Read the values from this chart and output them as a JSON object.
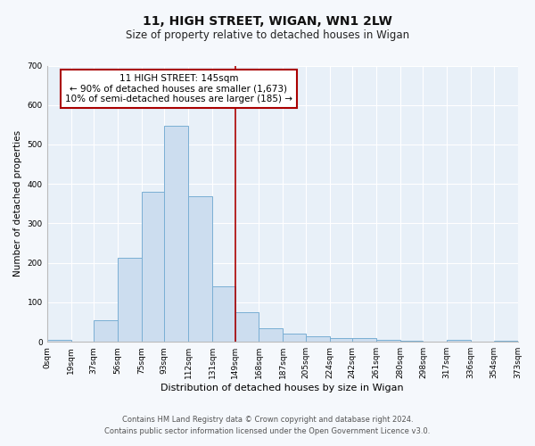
{
  "title": "11, HIGH STREET, WIGAN, WN1 2LW",
  "subtitle": "Size of property relative to detached houses in Wigan",
  "xlabel": "Distribution of detached houses by size in Wigan",
  "ylabel": "Number of detached properties",
  "bar_color": "#ccddef",
  "bar_edge_color": "#7aafd4",
  "background_color": "#e8f0f8",
  "fig_background_color": "#f5f8fc",
  "grid_color": "#ffffff",
  "vline_x": 149,
  "vline_color": "#aa0000",
  "bin_edges": [
    0,
    19,
    37,
    56,
    75,
    93,
    112,
    131,
    149,
    168,
    187,
    205,
    224,
    242,
    261,
    280,
    298,
    317,
    336,
    354,
    373
  ],
  "bin_counts": [
    5,
    0,
    55,
    213,
    381,
    547,
    370,
    141,
    76,
    34,
    20,
    15,
    10,
    9,
    6,
    2,
    0,
    4,
    1,
    2
  ],
  "tick_labels": [
    "0sqm",
    "19sqm",
    "37sqm",
    "56sqm",
    "75sqm",
    "93sqm",
    "112sqm",
    "131sqm",
    "149sqm",
    "168sqm",
    "187sqm",
    "205sqm",
    "224sqm",
    "242sqm",
    "261sqm",
    "280sqm",
    "298sqm",
    "317sqm",
    "336sqm",
    "354sqm",
    "373sqm"
  ],
  "ylim": [
    0,
    700
  ],
  "yticks": [
    0,
    100,
    200,
    300,
    400,
    500,
    600,
    700
  ],
  "annotation_title": "11 HIGH STREET: 145sqm",
  "annotation_line1": "← 90% of detached houses are smaller (1,673)",
  "annotation_line2": "10% of semi-detached houses are larger (185) →",
  "annotation_box_color": "#ffffff",
  "annotation_box_edge_color": "#aa0000",
  "footer1": "Contains HM Land Registry data © Crown copyright and database right 2024.",
  "footer2": "Contains public sector information licensed under the Open Government Licence v3.0.",
  "title_fontsize": 10,
  "subtitle_fontsize": 8.5,
  "xlabel_fontsize": 8,
  "ylabel_fontsize": 7.5,
  "tick_fontsize": 6.5,
  "annotation_fontsize": 7.5,
  "footer_fontsize": 6
}
